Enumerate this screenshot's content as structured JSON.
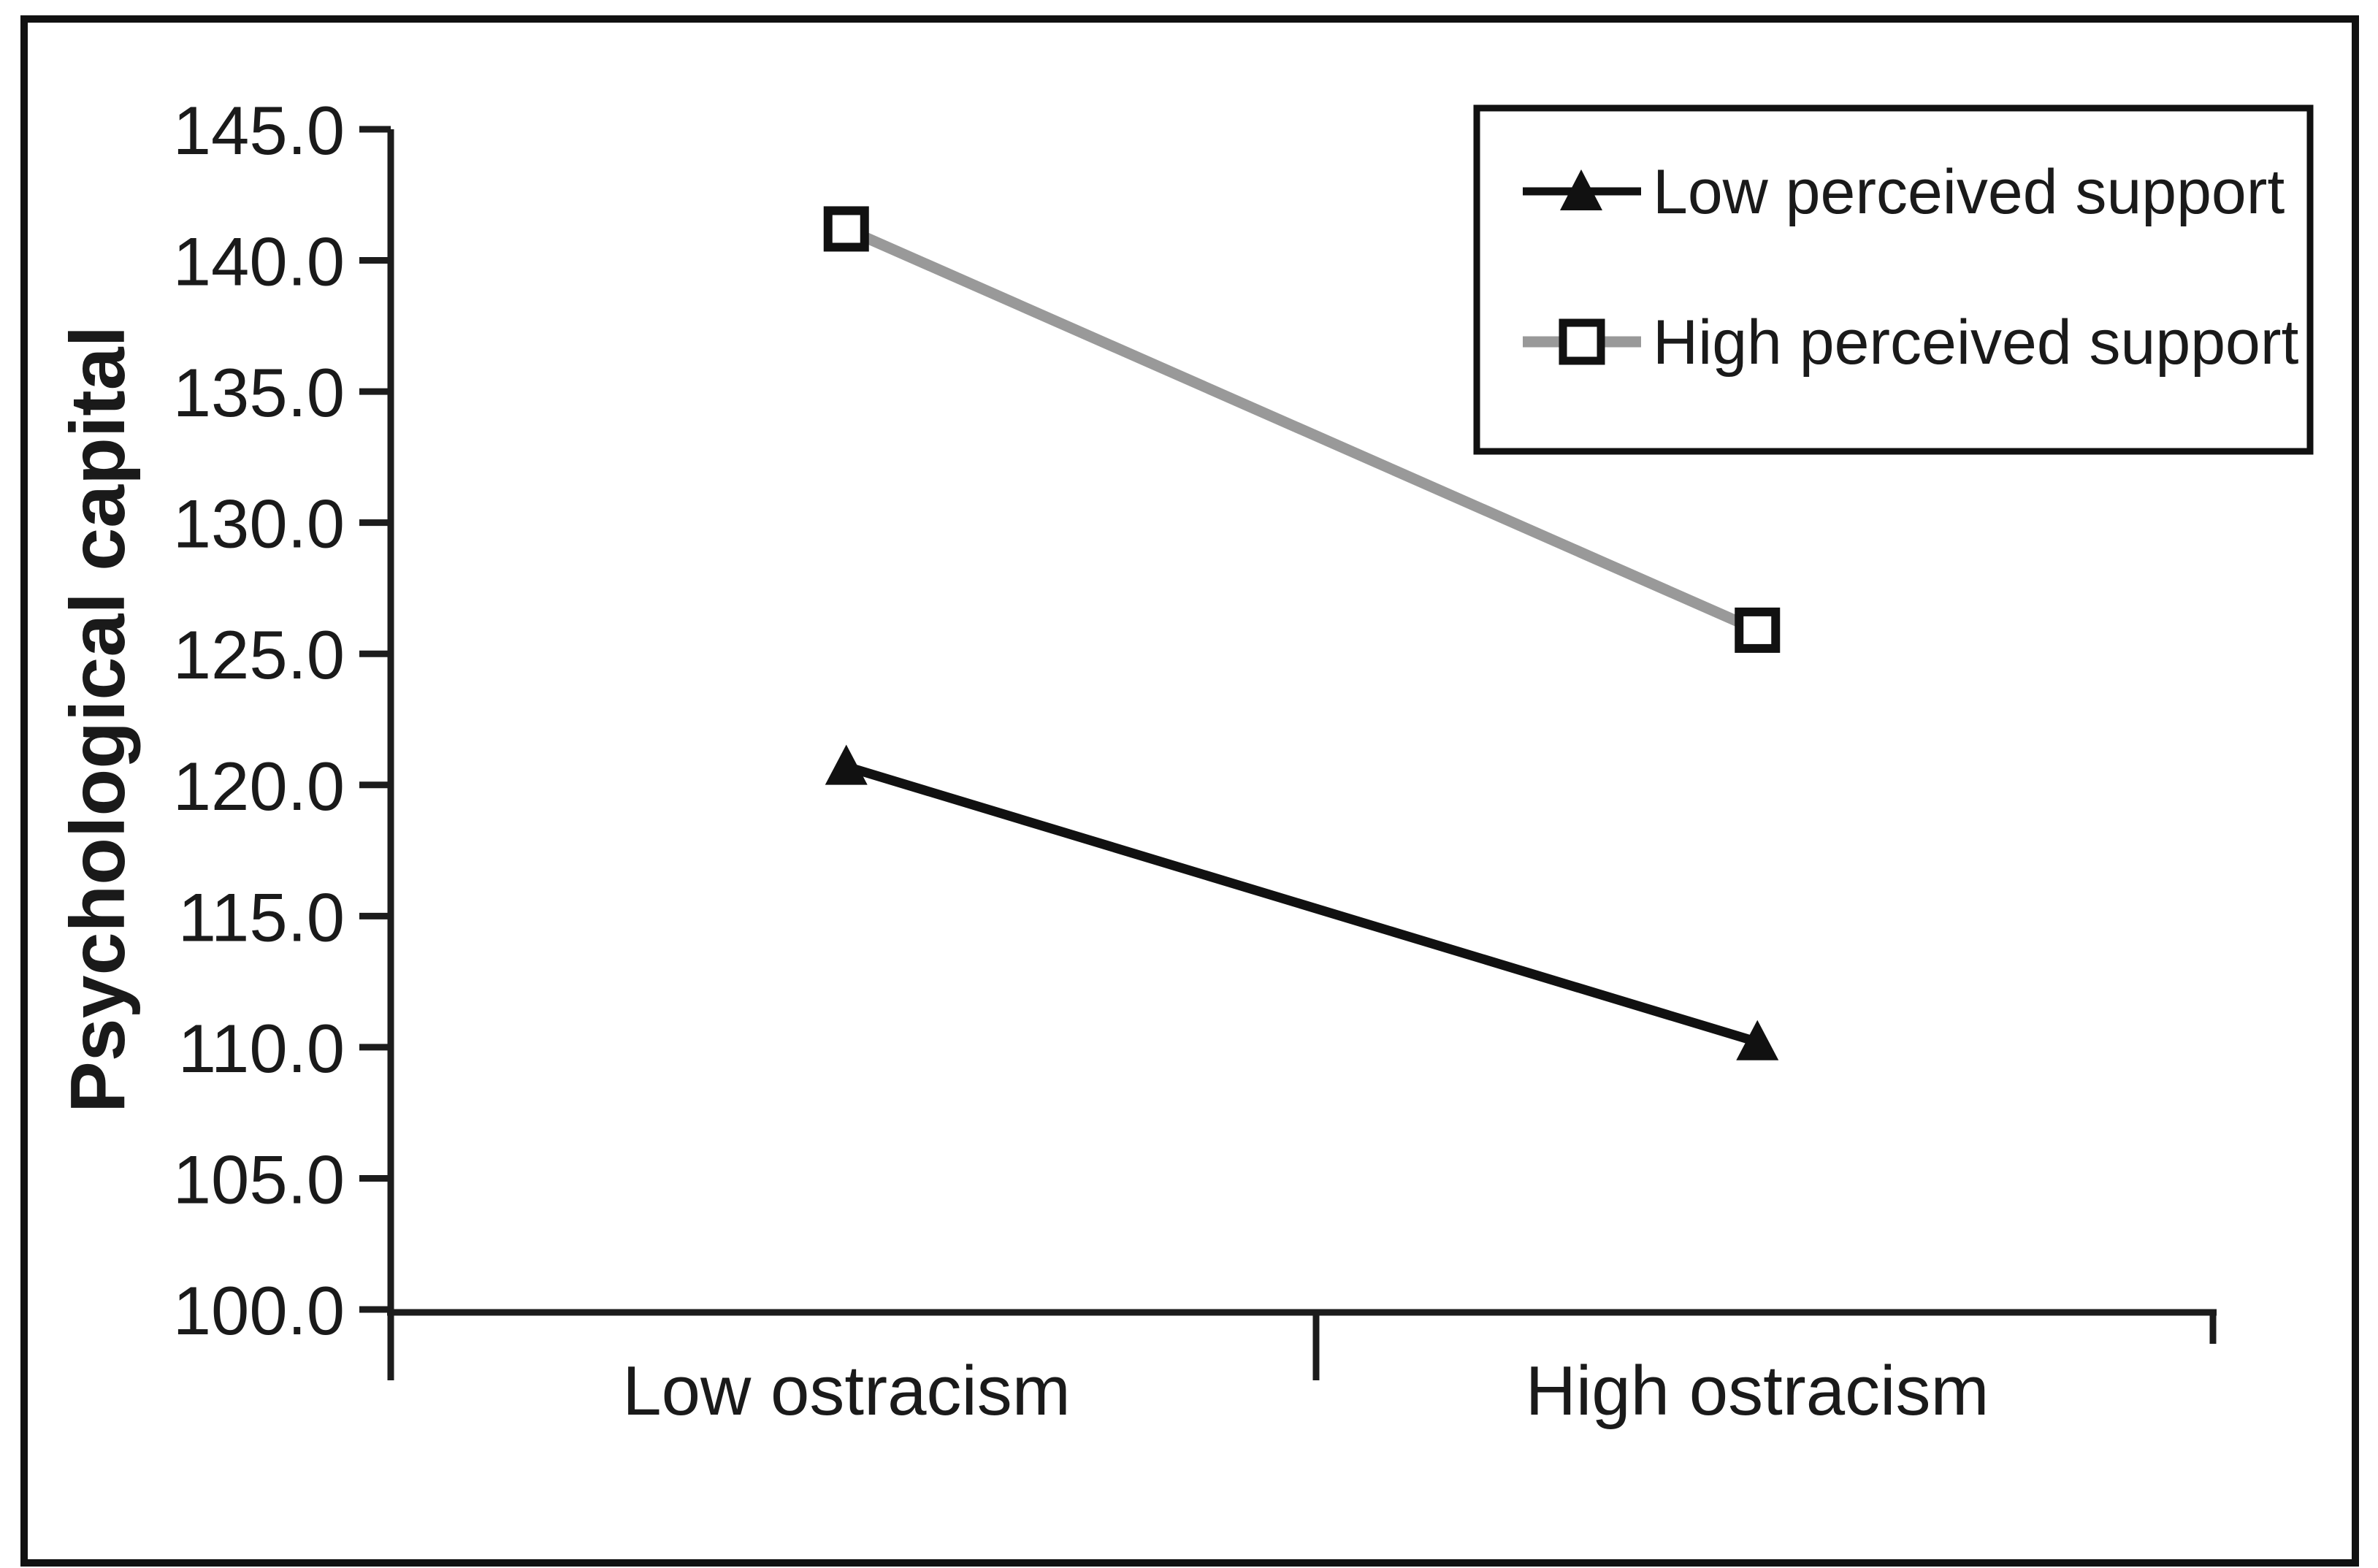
{
  "chart_data": {
    "type": "line",
    "categories": [
      "Low ostracism",
      "High ostracism"
    ],
    "series": [
      {
        "name": "Low perceived support",
        "values": [
          120.7,
          110.2
        ],
        "color": "#111111",
        "marker": "filled-triangle",
        "line_width": 13
      },
      {
        "name": "High perceived support",
        "values": [
          141.2,
          125.9
        ],
        "color": "#999999",
        "marker": "open-square",
        "line_width": 15
      }
    ],
    "title": "",
    "xlabel": "",
    "ylabel": "Psychological capital",
    "ylim": [
      100,
      145
    ],
    "ytick_step": 5,
    "ytick_labels": [
      "100.0",
      "105.0",
      "110.0",
      "115.0",
      "120.0",
      "125.0",
      "130.0",
      "135.0",
      "140.0",
      "145.0"
    ],
    "grid": false,
    "legend_position": "top-right"
  },
  "colors": {
    "axis": "#1c1c1c",
    "text": "#1a1a1a",
    "series_black": "#111111",
    "series_gray": "#999999",
    "marker_fill": "#ffffff",
    "frame_border": "#111111",
    "background": "#ffffff"
  }
}
